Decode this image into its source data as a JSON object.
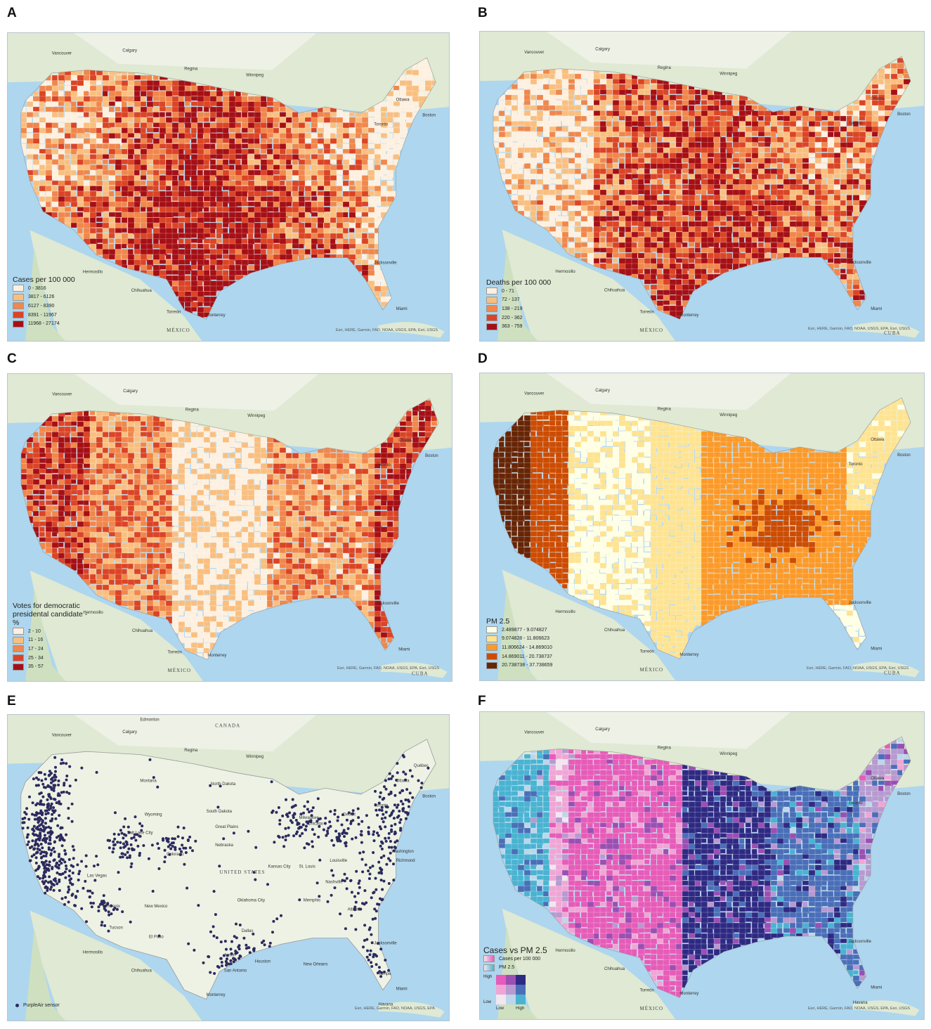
{
  "panels": [
    {
      "letter": "A",
      "legend": {
        "title": "Cases per 100 000",
        "items": [
          "0 - 3816",
          "3817 - 6126",
          "6127 - 8390",
          "8391 - 11967",
          "11968 - 27174"
        ],
        "colors": [
          "#fdf0e0",
          "#f9bf80",
          "#f0874c",
          "#db4426",
          "#a50f15"
        ]
      },
      "attribution": "Esri, HERE, Garmin, FAO, NOAA, USGS, EPA, Esri, USGS",
      "places": [
        "Vancouver",
        "Calgary",
        "Regina",
        "Winnipeg",
        "Ottawa",
        "Toronto",
        "Boston",
        "Hermosillo",
        "Chihuahua",
        "Monterrey",
        "Torreón",
        "Jacksonville",
        "Miami",
        "MÉXICO"
      ]
    },
    {
      "letter": "B",
      "legend": {
        "title": "Deaths per 100 000",
        "items": [
          "0 - 71",
          "72 - 137",
          "138 - 219",
          "220 - 362",
          "363 - 759"
        ],
        "colors": [
          "#fdf0e0",
          "#f9bf80",
          "#f0874c",
          "#db4426",
          "#a50f15"
        ]
      },
      "attribution": "Esri, HERE, Garmin, FAO, NOAA, USGS, EPA, Esri, USGS",
      "places": [
        "Vancouver",
        "Calgary",
        "Regina",
        "Winnipeg",
        "Ottawa",
        "Toronto",
        "Boston",
        "Hermosillo",
        "Chihuahua",
        "Monterrey",
        "Torreón",
        "Jacksonville",
        "Miami",
        "MÉXICO",
        "CUBA"
      ]
    },
    {
      "letter": "C",
      "legend": {
        "title": "Votes for democratic presidental candidate -%",
        "items": [
          "2 - 10",
          "11 - 16",
          "17 - 24",
          "25 - 34",
          "35 - 57"
        ],
        "colors": [
          "#fdf0e0",
          "#f9bf80",
          "#f0874c",
          "#db4426",
          "#a50f15"
        ]
      },
      "attribution": "Esri, HERE, Garmin, FAO, NOAA, USGS, EPA, Esri, USGS",
      "places": [
        "Vancouver",
        "Calgary",
        "Regina",
        "Winnipeg",
        "Ottawa",
        "Toronto",
        "Boston",
        "Hermosillo",
        "Chihuahua",
        "Monterrey",
        "Torreón",
        "Jacksonville",
        "Miami",
        "MÉXICO",
        "CUBA"
      ]
    },
    {
      "letter": "D",
      "legend": {
        "title": "PM 2.5",
        "items": [
          "2.489877 - 9.074827",
          "9.074828 - 11.806623",
          "11.806624 - 14.869010",
          "14.869011 - 20.738737",
          "20.738738 - 37.738659"
        ],
        "colors": [
          "#ffffe5",
          "#fee391",
          "#fb9a29",
          "#cc4c02",
          "#662506"
        ]
      },
      "attribution": "Esri, HERE, Garmin, FAO, NOAA, USGS, EPA, Esri, USGS",
      "places": [
        "Vancouver",
        "Calgary",
        "Regina",
        "Winnipeg",
        "Ottawa",
        "Toronto",
        "Boston",
        "Hermosillo",
        "Chihuahua",
        "Monterrey",
        "Torreón",
        "Jacksonville",
        "Miami",
        "MÉXICO",
        "CUBA"
      ]
    },
    {
      "letter": "E",
      "legend": {
        "title": "",
        "items": [
          "PurpleAir sensor"
        ],
        "colors": [
          "#2b2a5e"
        ]
      },
      "attribution": "Esri, HERE, Garmin, FAO, NOAA, USGS, EPA",
      "places": [
        "Edmonton",
        "CANADA",
        "Vancouver",
        "Calgary",
        "Regina",
        "Winnipeg",
        "Montana",
        "North Dakota",
        "South Dakota",
        "Great Plains",
        "Wyoming",
        "Nebraska",
        "Salt Lake City",
        "UNITED STATES",
        "Kansas City",
        "St. Louis",
        "Oklahoma City",
        "Dallas",
        "Austin",
        "San Antonio",
        "Houston",
        "New Orleans",
        "Memphis",
        "Atlanta",
        "Nashville",
        "Louisville",
        "Milwaukee",
        "Detroit",
        "Chicago",
        "Toronto",
        "Ottawa",
        "Québec",
        "Boston",
        "Washington",
        "Richmond",
        "Jacksonville",
        "Tampa",
        "Miami",
        "Las Vegas",
        "Phoenix",
        "Tucson",
        "El Paso",
        "New Mexico",
        "Colorado",
        "Hermosillo",
        "Chihuahua",
        "Monterrey",
        "Havana"
      ]
    },
    {
      "letter": "F",
      "legend": {
        "title": "Cases vs PM 2.5",
        "items": [
          "Cases per 100 000",
          "PM 2.5"
        ],
        "colors": [
          "#e65cb8",
          "#4ab3d1"
        ],
        "bivariate_labels": {
          "high": "High",
          "low": "Low",
          "x_low": "Low",
          "x_high": "High"
        },
        "bivariate_grid": [
          [
            "#e65cb8",
            "#9b4fb3",
            "#2e2a83"
          ],
          [
            "#efa6d5",
            "#b69ad0",
            "#4a6fb8"
          ],
          [
            "#f2e6f0",
            "#bcd6ea",
            "#4ab3d1"
          ]
        ]
      },
      "attribution": "Esri, HERE, Garmin, FAO, NOAA, USGS, EPA, Esri, USGS",
      "places": [
        "Vancouver",
        "Calgary",
        "Regina",
        "Winnipeg",
        "Ottawa",
        "Toronto",
        "Boston",
        "Hermosillo",
        "Chihuahua",
        "Monterrey",
        "Torreón",
        "Jacksonville",
        "Miami",
        "MÉXICO",
        "Havana"
      ]
    }
  ]
}
